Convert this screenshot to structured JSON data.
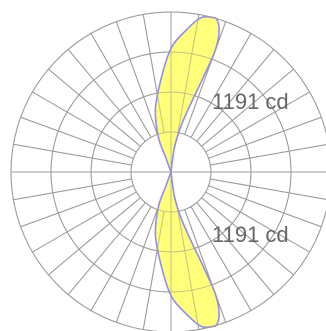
{
  "chart_data": {
    "type": "polar",
    "units": "cd",
    "max_value": 1191,
    "label_upper": "1191 cd",
    "label_lower": "1191 cd",
    "colors": {
      "fill": "#ffff66",
      "stroke": "#8f8ff0",
      "grid": "#9b9b9b",
      "label": "#666666"
    },
    "upper_lobe": [
      [
        0,
        0
      ],
      [
        8,
        180
      ],
      [
        12,
        340
      ],
      [
        16,
        520
      ],
      [
        19,
        760
      ],
      [
        20,
        960
      ],
      [
        19,
        1100
      ],
      [
        17,
        1180
      ],
      [
        15,
        1191
      ],
      [
        11,
        1170
      ],
      [
        6,
        1060
      ],
      [
        0,
        920
      ],
      [
        -6,
        700
      ],
      [
        -14,
        480
      ],
      [
        -20,
        270
      ],
      [
        -20,
        120
      ],
      [
        0,
        0
      ]
    ],
    "lower_lobe": [
      [
        180,
        0
      ],
      [
        172,
        180
      ],
      [
        168,
        340
      ],
      [
        164,
        520
      ],
      [
        161,
        760
      ],
      [
        160,
        960
      ],
      [
        161,
        1100
      ],
      [
        163,
        1180
      ],
      [
        165,
        1191
      ],
      [
        169,
        1170
      ],
      [
        174,
        1060
      ],
      [
        180,
        920
      ],
      [
        186,
        700
      ],
      [
        194,
        480
      ],
      [
        200,
        270
      ],
      [
        200,
        120
      ],
      [
        180,
        0
      ]
    ]
  }
}
